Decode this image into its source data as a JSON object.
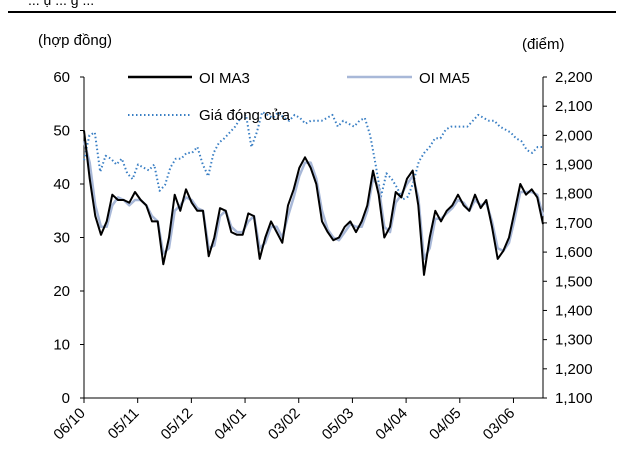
{
  "header": {
    "cut_text": "... ụ ... g ..."
  },
  "chart_data": {
    "type": "line",
    "left_unit": "(hợp đồng)",
    "right_unit": "(điểm)",
    "ylim_left": [
      0,
      60
    ],
    "ylim_right": [
      1100,
      2200
    ],
    "yticks_left": [
      "0",
      "10",
      "20",
      "30",
      "40",
      "50",
      "60"
    ],
    "yticks_right": [
      "1,100",
      "1,200",
      "1,300",
      "1,400",
      "1,500",
      "1,600",
      "1,700",
      "1,800",
      "1,900",
      "2,000",
      "2,100",
      "2,200"
    ],
    "x_ticks": [
      "06/10",
      "05/11",
      "05/12",
      "04/01",
      "03/02",
      "05/03",
      "04/04",
      "04/05",
      "03/06"
    ],
    "grid": false,
    "legend": [
      {
        "label": "OI MA3",
        "color": "#000000",
        "style": "solid"
      },
      {
        "label": "OI MA5",
        "color": "#a8b8d8",
        "style": "solid"
      },
      {
        "label": "Giá đóng cửa",
        "color": "#3a7fc4",
        "style": "dotted"
      }
    ],
    "series": [
      {
        "name": "OI MA3",
        "axis": "left",
        "color": "#000000",
        "values": [
          50,
          41,
          34,
          30.5,
          33,
          38,
          37,
          37,
          36.5,
          38.5,
          37,
          36,
          33,
          33,
          25,
          30,
          38,
          35,
          39,
          36.5,
          35,
          35,
          26.5,
          30,
          35.5,
          35,
          31,
          30.5,
          30.5,
          34.5,
          34,
          26,
          30,
          33,
          31,
          29,
          36,
          39,
          43,
          45,
          43,
          40,
          33,
          31,
          29.5,
          30,
          32,
          33,
          31,
          33,
          36,
          42.5,
          38,
          30,
          32,
          38.5,
          37.5,
          41,
          42.5,
          36,
          23,
          30,
          35,
          33,
          35,
          36,
          38,
          36,
          35,
          38,
          35.5,
          37,
          32,
          26,
          27.5,
          30,
          35,
          40,
          38,
          39,
          37.5,
          32.5
        ]
      },
      {
        "name": "OI MA5",
        "axis": "left",
        "color": "#a8b8d8",
        "values": [
          48,
          44,
          36,
          32,
          32,
          36,
          37.5,
          37,
          36,
          37,
          37,
          36,
          34,
          33,
          27,
          28,
          35,
          36,
          37.5,
          37,
          35.5,
          35,
          28,
          28.5,
          34,
          35,
          32,
          31,
          31,
          33,
          34,
          28,
          29,
          32,
          32,
          30,
          34,
          37.5,
          41.5,
          44,
          44,
          41,
          35,
          31.5,
          30,
          29.5,
          31,
          32.5,
          32,
          32,
          35,
          41,
          39.5,
          32,
          31,
          36.5,
          38,
          40,
          41.5,
          37.5,
          26,
          28,
          33.5,
          33.5,
          34.5,
          35.5,
          37,
          36.5,
          35,
          37,
          36,
          36.5,
          33,
          28,
          27.5,
          29,
          33.5,
          38.5,
          38.5,
          38.5,
          38,
          34
        ]
      },
      {
        "name": "Giá đóng cửa",
        "axis": "right",
        "color": "#3a7fc4",
        "values": [
          1915,
          2000,
          2010,
          1875,
          1930,
          1920,
          1900,
          1920,
          1870,
          1850,
          1900,
          1890,
          1880,
          1900,
          1810,
          1830,
          1890,
          1920,
          1920,
          1940,
          1940,
          1960,
          1900,
          1860,
          1940,
          1975,
          1990,
          2010,
          2030,
          2060,
          2070,
          1960,
          2010,
          2080,
          2070,
          2060,
          2080,
          2060,
          2050,
          2070,
          2060,
          2040,
          2050,
          2050,
          2050,
          2060,
          2070,
          2030,
          2050,
          2040,
          2030,
          2050,
          2060,
          2000,
          1900,
          1790,
          1870,
          1850,
          1820,
          1780,
          1790,
          1840,
          1910,
          1940,
          1960,
          1990,
          1990,
          2020,
          2030,
          2030,
          2030,
          2030,
          2050,
          2070,
          2060,
          2050,
          2050,
          2030,
          2020,
          2010,
          1990,
          1980,
          1950,
          1940,
          1960,
          1960
        ]
      }
    ]
  }
}
